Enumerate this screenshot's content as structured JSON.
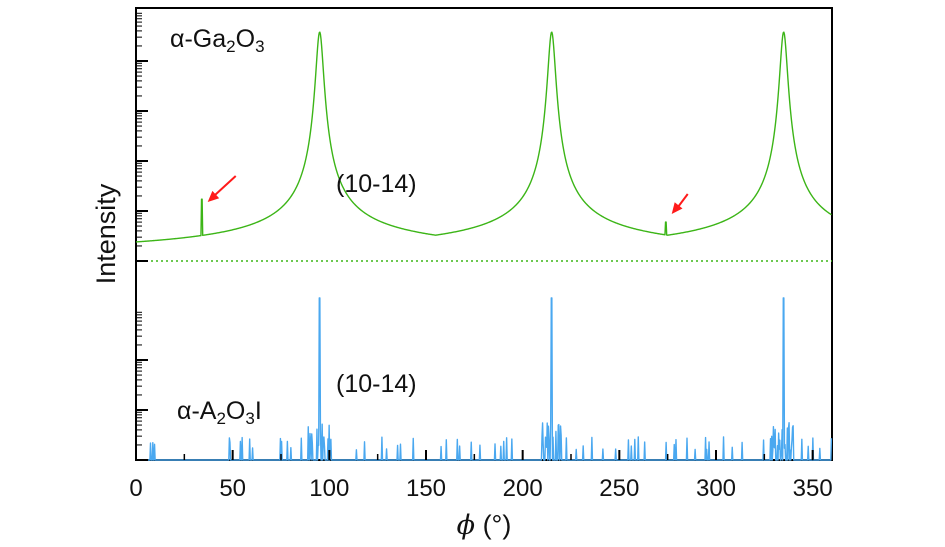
{
  "chart_data": {
    "type": "line",
    "xlabel_symbol": "ϕ",
    "xlabel_unit": "(°)",
    "ylabel": "Intensity",
    "xlim": [
      0,
      360
    ],
    "xticks": [
      "0",
      "50",
      "100",
      "150",
      "200",
      "250",
      "300",
      "350"
    ],
    "x_tick_values": [
      0,
      50,
      100,
      150,
      200,
      250,
      300,
      350
    ],
    "y_scale": "log",
    "y_ticks_labeled": false,
    "grid": false,
    "series": [
      {
        "name_parts": [
          "α-Ga",
          "2",
          "O",
          "3"
        ],
        "color": "#3cb517",
        "peak_positions": [
          95,
          215,
          335
        ],
        "peak_annotation": "(10-14)",
        "minor_peaks": [
          {
            "x": 34,
            "level": 0.27
          },
          {
            "x": 274,
            "level": 0.17
          }
        ],
        "arrow_color": "#ff1a1a",
        "arrows_point_to_x": [
          34,
          274
        ]
      },
      {
        "name_parts": [
          "α-A",
          "2",
          "O",
          "3",
          "I"
        ],
        "color": "#4aa8f0",
        "peak_positions": [
          95,
          215,
          335
        ],
        "peak_annotation": "(10-14)"
      }
    ]
  }
}
